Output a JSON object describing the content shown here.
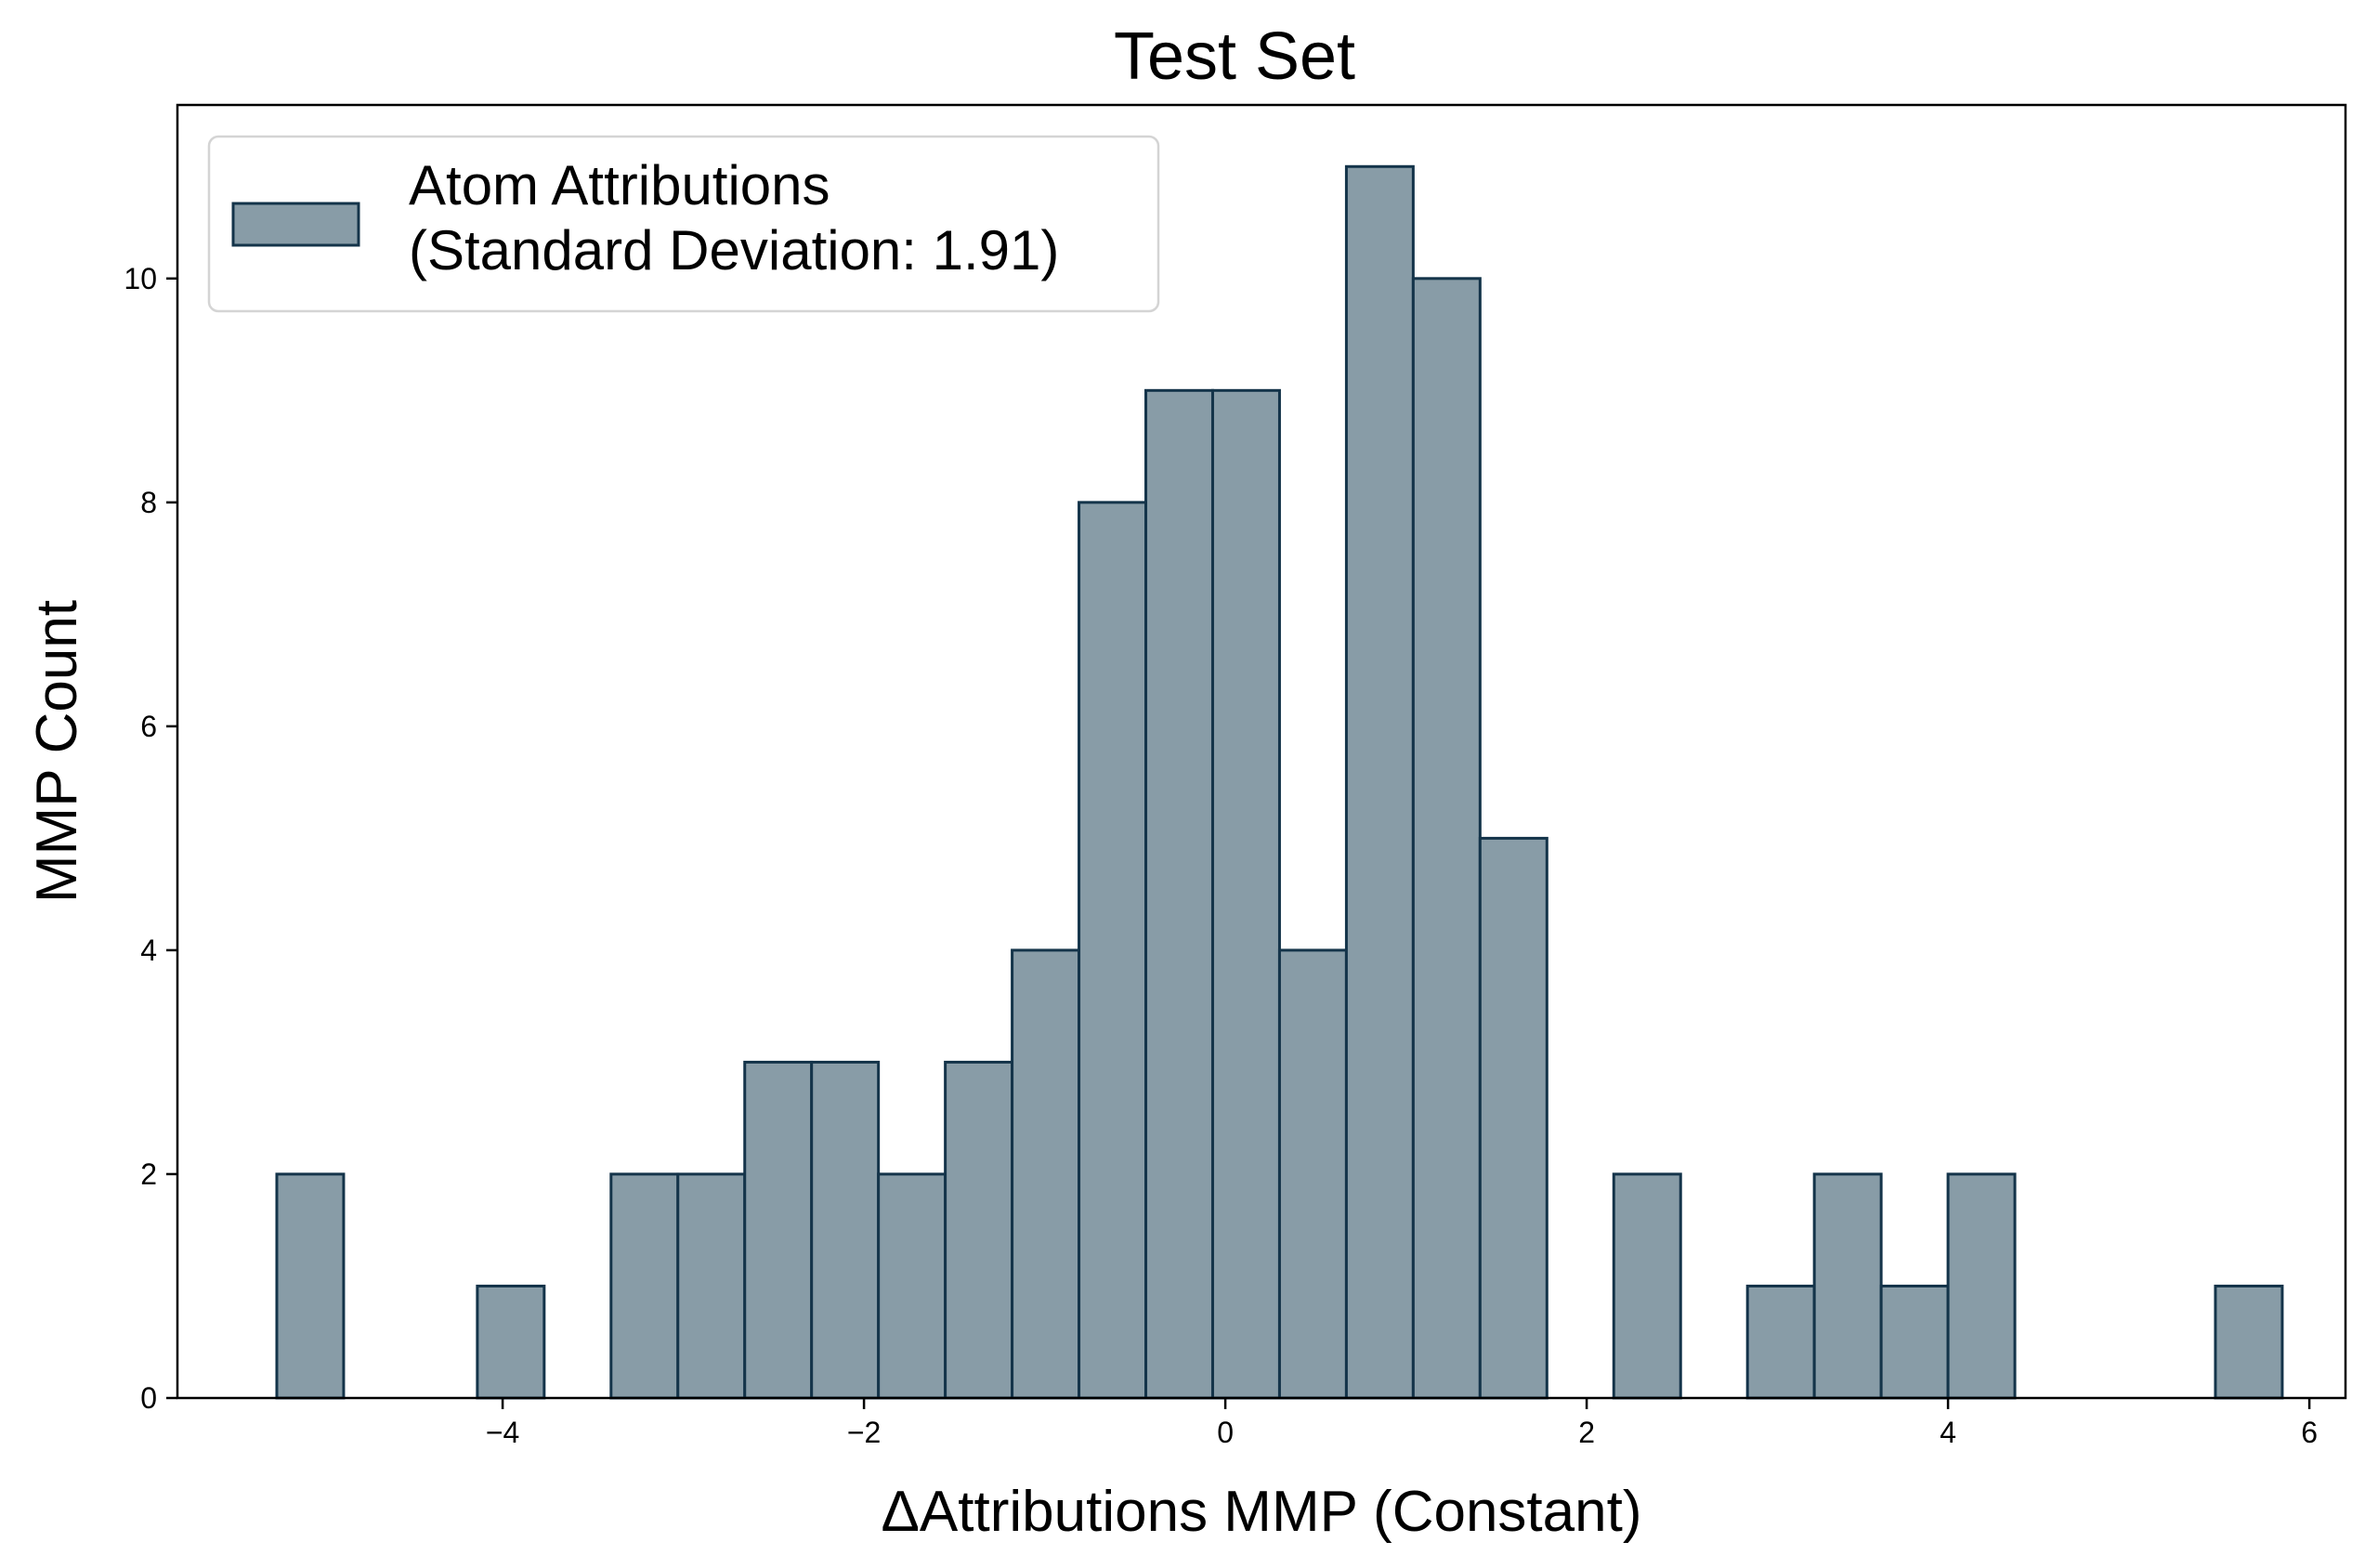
{
  "chart_data": {
    "type": "bar",
    "title": "Test Set",
    "xlabel": "ΔAttributions MMP (Constant)",
    "ylabel": "MMP Count",
    "xlim": [
      -5.8,
      6.2
    ],
    "ylim": [
      0,
      11.55
    ],
    "xticks": [
      -4,
      -2,
      0,
      2,
      4,
      6
    ],
    "xtick_labels": [
      "−4",
      "−2",
      "0",
      "2",
      "4",
      "6"
    ],
    "yticks": [
      0,
      2,
      4,
      6,
      8,
      10
    ],
    "ytick_labels": [
      "0",
      "2",
      "4",
      "6",
      "8",
      "10"
    ],
    "grid": false,
    "legend_position": "top-left",
    "colors": {
      "fill": "#889ca7",
      "edge": "#14344a"
    },
    "bin_width": 0.37,
    "series": [
      {
        "name": "Atom Attributions\n(Standard Deviation: 1.91)",
        "bins": [
          {
            "x0": -5.25,
            "count": 2
          },
          {
            "x0": -4.88,
            "count": 0
          },
          {
            "x0": -4.51,
            "count": 0
          },
          {
            "x0": -4.14,
            "count": 1
          },
          {
            "x0": -3.77,
            "count": 0
          },
          {
            "x0": -3.4,
            "count": 2
          },
          {
            "x0": -3.03,
            "count": 2
          },
          {
            "x0": -2.66,
            "count": 3
          },
          {
            "x0": -2.29,
            "count": 3
          },
          {
            "x0": -1.92,
            "count": 2
          },
          {
            "x0": -1.55,
            "count": 3
          },
          {
            "x0": -1.18,
            "count": 4
          },
          {
            "x0": -0.81,
            "count": 8
          },
          {
            "x0": -0.44,
            "count": 9
          },
          {
            "x0": -0.07,
            "count": 9
          },
          {
            "x0": 0.3,
            "count": 4
          },
          {
            "x0": 0.67,
            "count": 11
          },
          {
            "x0": 1.04,
            "count": 10
          },
          {
            "x0": 1.41,
            "count": 5
          },
          {
            "x0": 1.78,
            "count": 0
          },
          {
            "x0": 2.15,
            "count": 2
          },
          {
            "x0": 2.52,
            "count": 0
          },
          {
            "x0": 2.89,
            "count": 1
          },
          {
            "x0": 3.26,
            "count": 2
          },
          {
            "x0": 3.63,
            "count": 1
          },
          {
            "x0": 4.0,
            "count": 2
          },
          {
            "x0": 4.37,
            "count": 0
          },
          {
            "x0": 4.74,
            "count": 0
          },
          {
            "x0": 5.11,
            "count": 0
          },
          {
            "x0": 5.48,
            "count": 1
          }
        ]
      }
    ]
  }
}
